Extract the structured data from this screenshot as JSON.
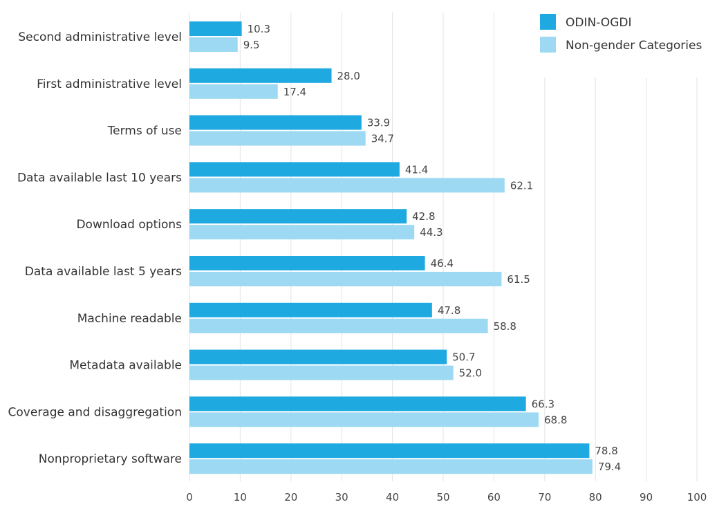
{
  "chart_data": {
    "type": "bar",
    "orientation": "horizontal",
    "categories": [
      "Second administrative level",
      "First administrative level",
      "Terms of use",
      "Data available last 10 years",
      "Download options",
      "Data available last 5 years",
      "Machine readable",
      "Metadata available",
      "Coverage and disaggregation",
      "Nonproprietary software"
    ],
    "series": [
      {
        "name": "ODIN-OGDI",
        "color": "#1ea9e1",
        "values": [
          10.3,
          28.0,
          33.9,
          41.4,
          42.8,
          46.4,
          47.8,
          50.7,
          66.3,
          78.8
        ]
      },
      {
        "name": "Non-gender Categories",
        "color": "#9dd9f2",
        "values": [
          9.5,
          17.4,
          34.7,
          62.1,
          44.3,
          61.5,
          58.8,
          52.0,
          68.8,
          79.4
        ]
      }
    ],
    "data_labels": true,
    "xlim": [
      0,
      100
    ],
    "xticks": [
      "0",
      "10",
      "20",
      "30",
      "40",
      "50",
      "60",
      "70",
      "80",
      "90",
      "100"
    ],
    "grid": true,
    "legend": "top-right",
    "title": "",
    "xlabel": "",
    "ylabel": ""
  }
}
